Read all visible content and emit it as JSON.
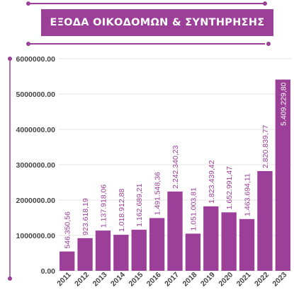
{
  "title": "ΕΞΟΔΑ ΟΙΚΟΔΟΜΩΝ & ΣΥΝΤΗΡΗΣΗΣ",
  "colors": {
    "accent": "#9b3f98",
    "bar": "#9b3f98",
    "grid": "#e6e6e6",
    "tick": "#444444"
  },
  "chart_data": {
    "type": "bar",
    "title": "ΕΞΟΔΑ ΟΙΚΟΔΟΜΩΝ & ΣΥΝΤΗΡΗΣΗΣ",
    "xlabel": "",
    "ylabel": "",
    "ylim": [
      0,
      6000000
    ],
    "grid": true,
    "yticks": [
      "0.00",
      "1000000.00",
      "2000000.00",
      "3000000.00",
      "4000000.00",
      "5000000.00",
      "6000000.00"
    ],
    "categories": [
      "2011",
      "2012",
      "2013",
      "2014",
      "2015",
      "2016",
      "2017",
      "2018",
      "2019",
      "2020",
      "2021",
      "2022",
      "2023"
    ],
    "values": [
      546350.56,
      923618.19,
      1137918.06,
      1018912.88,
      1162689.21,
      1491548.36,
      2242340.23,
      1051003.81,
      1823439.42,
      1652991.47,
      1463694.11,
      2820839.77,
      5409229.8
    ],
    "labels": [
      "546.350,56",
      "923.618,19",
      "1.137.918,06",
      "1.018.912,88",
      "1.162.689,21",
      "1.491.548,36",
      "2.242.340,23",
      "1.051.003,81",
      "1.823.439,42",
      "1.652.991,47",
      "1.463.694,11",
      "2.820.839,77",
      "5.409.229,80"
    ]
  }
}
